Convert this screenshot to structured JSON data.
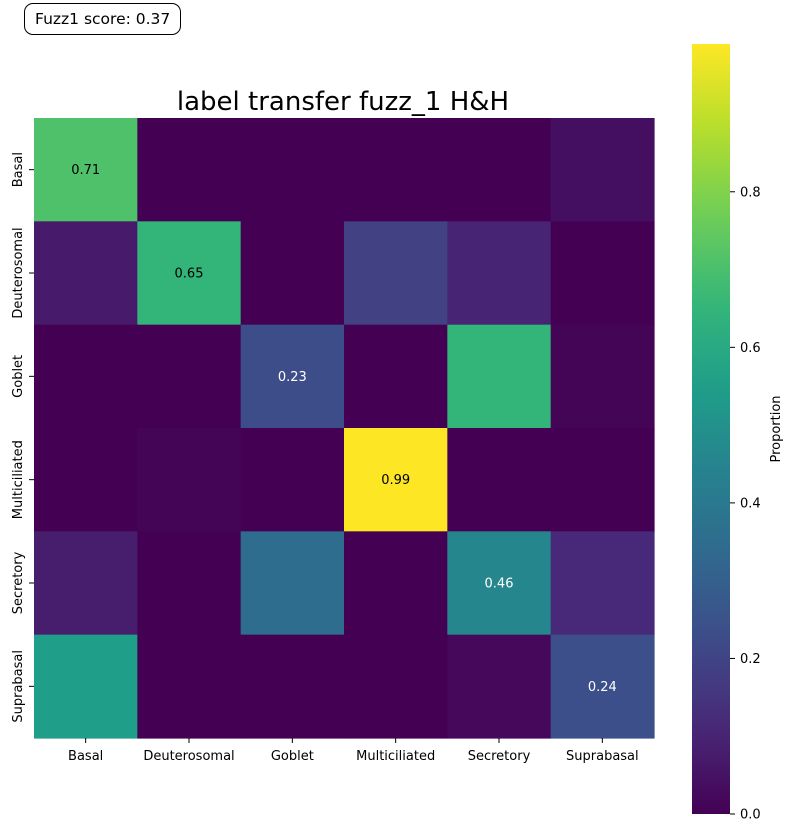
{
  "score_label": "Fuzz1 score: 0.37",
  "chart_data": {
    "type": "heatmap",
    "title": "label transfer fuzz_1 H&H",
    "xlabel": "",
    "ylabel": "",
    "rows": [
      "Basal",
      "Deuterosomal",
      "Goblet",
      "Multiciliated",
      "Secretory",
      "Suprabasal"
    ],
    "columns": [
      "Basal",
      "Deuterosomal",
      "Goblet",
      "Multiciliated",
      "Secretory",
      "Suprabasal"
    ],
    "values": [
      [
        0.71,
        0.0,
        0.0,
        0.0,
        0.0,
        0.04
      ],
      [
        0.07,
        0.65,
        0.0,
        0.19,
        0.1,
        0.0
      ],
      [
        0.0,
        0.0,
        0.23,
        0.0,
        0.65,
        0.01
      ],
      [
        0.0,
        0.01,
        0.0,
        0.99,
        0.0,
        0.0
      ],
      [
        0.08,
        0.0,
        0.35,
        0.0,
        0.46,
        0.11
      ],
      [
        0.55,
        0.0,
        0.0,
        0.0,
        0.02,
        0.24
      ]
    ],
    "annotations": [
      {
        "row": 0,
        "col": 0,
        "text": "0.71"
      },
      {
        "row": 1,
        "col": 1,
        "text": "0.65"
      },
      {
        "row": 2,
        "col": 2,
        "text": "0.23"
      },
      {
        "row": 3,
        "col": 3,
        "text": "0.99"
      },
      {
        "row": 4,
        "col": 4,
        "text": "0.46"
      },
      {
        "row": 5,
        "col": 5,
        "text": "0.24"
      }
    ],
    "colormap": "viridis",
    "vmin": 0.0,
    "vmax": 0.99,
    "colorbar": {
      "label": "Proportion",
      "ticks": [
        0.0,
        0.2,
        0.4,
        0.6,
        0.8
      ],
      "tick_labels": [
        "0.0",
        "0.2",
        "0.4",
        "0.6",
        "0.8"
      ]
    }
  }
}
